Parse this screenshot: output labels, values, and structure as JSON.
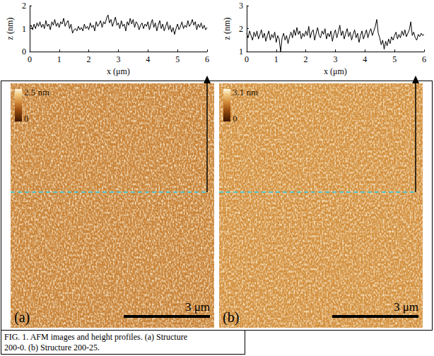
{
  "chart_data": [
    {
      "type": "line",
      "x_label": "x (μm)",
      "y_label": "z (nm)",
      "color": "#000000",
      "grid": false,
      "xlim": [
        0,
        6
      ],
      "xticks": [
        0,
        1,
        2,
        3,
        4,
        5,
        6
      ],
      "ylim": [
        0,
        2
      ],
      "yticks": [
        0,
        1,
        2
      ],
      "x": [
        0,
        0.05,
        0.1,
        0.15,
        0.2,
        0.25,
        0.3,
        0.35,
        0.4,
        0.45,
        0.5,
        0.55,
        0.6,
        0.65,
        0.7,
        0.75,
        0.8,
        0.85,
        0.9,
        0.95,
        1,
        1.05,
        1.1,
        1.15,
        1.2,
        1.25,
        1.3,
        1.35,
        1.4,
        1.45,
        1.5,
        1.55,
        1.6,
        1.65,
        1.7,
        1.75,
        1.8,
        1.85,
        1.9,
        1.95,
        2,
        2.05,
        2.1,
        2.15,
        2.2,
        2.25,
        2.3,
        2.35,
        2.4,
        2.45,
        2.5,
        2.55,
        2.6,
        2.65,
        2.7,
        2.75,
        2.8,
        2.85,
        2.9,
        2.95,
        3,
        3.05,
        3.1,
        3.15,
        3.2,
        3.25,
        3.3,
        3.35,
        3.4,
        3.45,
        3.5,
        3.55,
        3.6,
        3.65,
        3.7,
        3.75,
        3.8,
        3.85,
        3.9,
        3.95,
        4,
        4.05,
        4.1,
        4.15,
        4.2,
        4.25,
        4.3,
        4.35,
        4.4,
        4.45,
        4.5,
        4.55,
        4.6,
        4.65,
        4.7,
        4.75,
        4.8,
        4.85,
        4.9,
        4.95,
        5,
        5.05,
        5.1,
        5.15,
        5.2,
        5.25,
        5.3,
        5.35,
        5.4,
        5.45,
        5.5,
        5.55,
        5.6,
        5.65,
        5.7,
        5.75,
        5.8,
        5.85,
        5.9,
        5.95,
        6
      ],
      "values": [
        1.05,
        1.15,
        0.95,
        1.2,
        1.0,
        1.25,
        1.1,
        1.3,
        1.05,
        1.2,
        1.0,
        1.35,
        1.1,
        1.2,
        0.95,
        1.3,
        1.15,
        1.4,
        1.1,
        1.25,
        1.05,
        1.3,
        1.2,
        1.45,
        1.1,
        1.25,
        1.35,
        1.0,
        1.2,
        0.8,
        0.95,
        1.0,
        0.9,
        1.1,
        0.95,
        1.05,
        0.9,
        1.2,
        1.0,
        1.1,
        0.95,
        1.25,
        1.05,
        1.15,
        0.9,
        1.3,
        1.1,
        1.2,
        1.35,
        1.05,
        1.3,
        1.2,
        1.45,
        1.6,
        1.25,
        1.4,
        1.1,
        1.3,
        1.5,
        1.15,
        1.25,
        1.0,
        1.35,
        1.1,
        1.2,
        0.9,
        1.3,
        1.15,
        1.45,
        1.2,
        1.4,
        1.05,
        1.3,
        1.2,
        0.95,
        1.15,
        1.25,
        1.0,
        1.2,
        1.1,
        1.3,
        0.95,
        1.2,
        1.4,
        1.05,
        1.25,
        0.9,
        1.15,
        1.35,
        1.0,
        1.2,
        0.9,
        1.1,
        1.3,
        0.95,
        1.15,
        0.85,
        1.05,
        0.75,
        1.0,
        1.2,
        0.95,
        1.1,
        1.3,
        1.0,
        1.15,
        1.05,
        1.35,
        1.1,
        1.2,
        1.4,
        1.15,
        1.3,
        0.95,
        1.2,
        1.05,
        1.25,
        1.0,
        1.15,
        0.95,
        1.05
      ]
    },
    {
      "type": "line",
      "x_label": "x (μm)",
      "y_label": "z (nm)",
      "color": "#000000",
      "grid": false,
      "xlim": [
        0,
        6
      ],
      "xticks": [
        0,
        1,
        2,
        3,
        4,
        5,
        6
      ],
      "ylim": [
        1,
        3
      ],
      "yticks": [
        1,
        2,
        3
      ],
      "x": [
        0,
        0.05,
        0.1,
        0.15,
        0.2,
        0.25,
        0.3,
        0.35,
        0.4,
        0.45,
        0.5,
        0.55,
        0.6,
        0.65,
        0.7,
        0.75,
        0.8,
        0.85,
        0.9,
        0.95,
        1,
        1.05,
        1.1,
        1.15,
        1.2,
        1.25,
        1.3,
        1.35,
        1.4,
        1.45,
        1.5,
        1.55,
        1.6,
        1.65,
        1.7,
        1.75,
        1.8,
        1.85,
        1.9,
        1.95,
        2,
        2.05,
        2.1,
        2.15,
        2.2,
        2.25,
        2.3,
        2.35,
        2.4,
        2.45,
        2.5,
        2.55,
        2.6,
        2.65,
        2.7,
        2.75,
        2.8,
        2.85,
        2.9,
        2.95,
        3,
        3.05,
        3.1,
        3.15,
        3.2,
        3.25,
        3.3,
        3.35,
        3.4,
        3.45,
        3.5,
        3.55,
        3.6,
        3.65,
        3.7,
        3.75,
        3.8,
        3.85,
        3.9,
        3.95,
        4,
        4.05,
        4.1,
        4.15,
        4.2,
        4.25,
        4.3,
        4.35,
        4.4,
        4.45,
        4.5,
        4.55,
        4.6,
        4.65,
        4.7,
        4.75,
        4.8,
        4.85,
        4.9,
        4.95,
        5,
        5.05,
        5.1,
        5.15,
        5.2,
        5.25,
        5.3,
        5.35,
        5.4,
        5.45,
        5.5,
        5.55,
        5.6,
        5.65,
        5.7,
        5.75,
        5.8,
        5.85,
        5.9,
        5.95,
        6
      ],
      "values": [
        1.8,
        1.6,
        1.9,
        1.7,
        1.5,
        1.85,
        1.65,
        1.9,
        1.55,
        1.75,
        1.95,
        1.6,
        1.8,
        1.45,
        1.7,
        1.9,
        1.5,
        1.75,
        1.6,
        1.85,
        1.4,
        1.7,
        1.55,
        1.0,
        1.6,
        1.8,
        1.5,
        1.7,
        1.35,
        1.65,
        1.85,
        1.6,
        1.95,
        1.7,
        2.05,
        1.75,
        1.9,
        1.55,
        1.8,
        1.65,
        1.9,
        1.7,
        2.1,
        1.6,
        1.85,
        1.95,
        1.5,
        1.8,
        2.05,
        1.7,
        1.6,
        1.9,
        1.75,
        2.0,
        1.55,
        1.8,
        1.65,
        1.9,
        1.45,
        1.75,
        1.95,
        1.6,
        1.85,
        2.15,
        1.7,
        1.9,
        1.55,
        1.8,
        2.0,
        1.65,
        1.85,
        1.5,
        1.75,
        1.95,
        1.6,
        1.8,
        1.4,
        1.7,
        1.9,
        1.55,
        1.75,
        1.95,
        1.6,
        1.85,
        2.0,
        1.7,
        1.9,
        2.1,
        2.4,
        1.8,
        1.6,
        1.3,
        1.5,
        1.1,
        1.45,
        1.25,
        1.55,
        1.35,
        1.65,
        1.5,
        1.7,
        1.85,
        1.55,
        1.75,
        1.6,
        1.9,
        1.7,
        1.95,
        1.65,
        1.8,
        1.95,
        2.3,
        1.7,
        1.85,
        1.6,
        1.5,
        1.75,
        1.65,
        1.8,
        1.7,
        1.75
      ]
    }
  ],
  "images": [
    {
      "label": "(a)",
      "colorbar": {
        "range": [
          0,
          2.5
        ],
        "ticks": [
          {
            "value": 0,
            "label": "0"
          },
          {
            "value": 2.5,
            "label": "2.5 nm"
          }
        ]
      },
      "scale_bar": "3 μm"
    },
    {
      "label": "(b)",
      "colorbar": {
        "range": [
          0,
          3.1
        ],
        "ticks": [
          {
            "value": 0,
            "label": "0"
          },
          {
            "value": 3.1,
            "label": "3.1 nm"
          }
        ]
      },
      "scale_bar": "3 μm"
    }
  ],
  "caption": "FIG. 1. AFM images and height profiles. (a) Structure 200-0. (b) Structure 200-25."
}
